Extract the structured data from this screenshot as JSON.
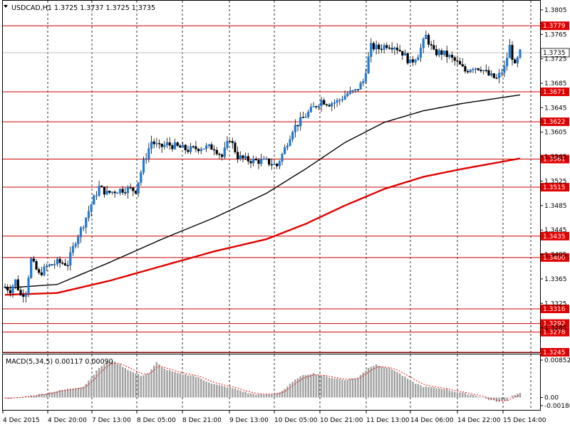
{
  "chart_data": [
    {
      "type": "candlestick",
      "title": "USDCAD,H1  1.3725 1.3737 1.3725 1.3735",
      "symbol": "USDCAD",
      "timeframe": "H1",
      "ohlc_last": {
        "open": 1.3725,
        "high": 1.3737,
        "low": 1.3725,
        "close": 1.3735
      },
      "current_price": "1.3735",
      "ylim": [
        1.3245,
        1.382
      ],
      "y_ticks": [
        "1.3805",
        "1.3765",
        "1.3725",
        "1.3685",
        "1.3645",
        "1.3605",
        "1.3565",
        "1.3525",
        "1.3485",
        "1.3445",
        "1.3405",
        "1.3365",
        "1.3325",
        "1.3285"
      ],
      "x_ticks": [
        "4 Dec 2015",
        "4 Dec 20:00",
        "7 Dec 13:00",
        "8 Dec 05:00",
        "8 Dec 21:00",
        "9 Dec 13:00",
        "10 Dec 05:00",
        "10 Dec 21:00",
        "11 Dec 13:00",
        "14 Dec 06:00",
        "14 Dec 22:00",
        "15 Dec 14:00"
      ],
      "grid": true,
      "levels": [
        {
          "value": 1.3779,
          "label": "1.3779"
        },
        {
          "value": 1.3671,
          "label": "1.3671"
        },
        {
          "value": 1.3622,
          "label": "1.3622"
        },
        {
          "value": 1.3561,
          "label": "1.3561"
        },
        {
          "value": 1.3515,
          "label": "1.3515"
        },
        {
          "value": 1.3435,
          "label": "1.3435"
        },
        {
          "value": 1.34,
          "label": "1.3400"
        },
        {
          "value": 1.3316,
          "label": "1.3316"
        },
        {
          "value": 1.3292,
          "label": "1.3292"
        },
        {
          "value": 1.3278,
          "label": "1.3278"
        },
        {
          "value": 1.3245,
          "label": "1.3245"
        }
      ],
      "key_prices": [
        [
          0,
          1.3352
        ],
        [
          2,
          1.3347
        ],
        [
          4,
          1.3362
        ],
        [
          6,
          1.3338
        ],
        [
          8,
          1.3345
        ],
        [
          10,
          1.3396
        ],
        [
          13,
          1.3372
        ],
        [
          16,
          1.3385
        ],
        [
          20,
          1.3392
        ],
        [
          24,
          1.339
        ],
        [
          27,
          1.3428
        ],
        [
          30,
          1.3455
        ],
        [
          33,
          1.3487
        ],
        [
          36,
          1.3515
        ],
        [
          39,
          1.3505
        ],
        [
          43,
          1.351
        ],
        [
          47,
          1.3512
        ],
        [
          50,
          1.351
        ],
        [
          53,
          1.3555
        ],
        [
          56,
          1.359
        ],
        [
          59,
          1.358
        ],
        [
          62,
          1.3585
        ],
        [
          65,
          1.3582
        ],
        [
          70,
          1.3576
        ],
        [
          75,
          1.358
        ],
        [
          80,
          1.358
        ],
        [
          83,
          1.3565
        ],
        [
          86,
          1.3595
        ],
        [
          89,
          1.3565
        ],
        [
          92,
          1.356
        ],
        [
          96,
          1.3558
        ],
        [
          100,
          1.3557
        ],
        [
          104,
          1.355
        ],
        [
          107,
          1.3578
        ],
        [
          110,
          1.361
        ],
        [
          114,
          1.3628
        ],
        [
          118,
          1.3645
        ],
        [
          121,
          1.3657
        ],
        [
          124,
          1.3652
        ],
        [
          127,
          1.3655
        ],
        [
          131,
          1.3668
        ],
        [
          134,
          1.3672
        ],
        [
          137,
          1.3688
        ],
        [
          140,
          1.3745
        ],
        [
          143,
          1.3742
        ],
        [
          146,
          1.3748
        ],
        [
          149,
          1.3746
        ],
        [
          152,
          1.3735
        ],
        [
          155,
          1.3718
        ],
        [
          158,
          1.3732
        ],
        [
          161,
          1.3762
        ],
        [
          164,
          1.3735
        ],
        [
          167,
          1.3735
        ],
        [
          170,
          1.3728
        ],
        [
          173,
          1.3718
        ],
        [
          176,
          1.3705
        ],
        [
          179,
          1.3712
        ],
        [
          182,
          1.371
        ],
        [
          185,
          1.3698
        ],
        [
          188,
          1.3692
        ],
        [
          191,
          1.371
        ],
        [
          193,
          1.3745
        ],
        [
          195,
          1.3712
        ],
        [
          197,
          1.3735
        ]
      ],
      "series": [
        {
          "name": "",
          "color": "#000000",
          "values": [
            [
              0,
              1.335
            ],
            [
              20,
              1.3356
            ],
            [
              40,
              1.3392
            ],
            [
              60,
              1.343
            ],
            [
              80,
              1.3465
            ],
            [
              100,
              1.3505
            ],
            [
              115,
              1.3545
            ],
            [
              130,
              1.3588
            ],
            [
              145,
              1.3621
            ],
            [
              160,
              1.364
            ],
            [
              175,
              1.3652
            ],
            [
              197,
              1.3666
            ]
          ]
        },
        {
          "name": "",
          "color": "#e00000",
          "values": [
            [
              0,
              1.3339
            ],
            [
              20,
              1.3342
            ],
            [
              40,
              1.3362
            ],
            [
              60,
              1.3386
            ],
            [
              80,
              1.341
            ],
            [
              100,
              1.343
            ],
            [
              115,
              1.3455
            ],
            [
              130,
              1.3485
            ],
            [
              145,
              1.3512
            ],
            [
              160,
              1.3532
            ],
            [
              175,
              1.3545
            ],
            [
              197,
              1.3562
            ]
          ]
        }
      ]
    },
    {
      "type": "bar",
      "title": "MACD(5,34,5) 0.00117 0.00090",
      "y_ticks": [
        "0.00852",
        "0.00",
        "-0.00186"
      ],
      "ylim": [
        -0.00186,
        0.00852
      ],
      "key_values": [
        [
          0,
          -0.0002
        ],
        [
          5,
          0.0
        ],
        [
          10,
          0.0004
        ],
        [
          15,
          0.0009
        ],
        [
          20,
          0.0015
        ],
        [
          25,
          0.002
        ],
        [
          30,
          0.0025
        ],
        [
          33,
          0.0045
        ],
        [
          36,
          0.0068
        ],
        [
          39,
          0.008
        ],
        [
          41,
          0.0083
        ],
        [
          44,
          0.0075
        ],
        [
          48,
          0.006
        ],
        [
          52,
          0.005
        ],
        [
          55,
          0.0055
        ],
        [
          58,
          0.008
        ],
        [
          61,
          0.0065
        ],
        [
          66,
          0.0055
        ],
        [
          72,
          0.005
        ],
        [
          76,
          0.004
        ],
        [
          80,
          0.003
        ],
        [
          84,
          0.0025
        ],
        [
          88,
          0.002
        ],
        [
          93,
          0.001
        ],
        [
          98,
          0.0006
        ],
        [
          103,
          0.0008
        ],
        [
          106,
          0.0015
        ],
        [
          109,
          0.003
        ],
        [
          112,
          0.0045
        ],
        [
          115,
          0.0052
        ],
        [
          118,
          0.0055
        ],
        [
          121,
          0.005
        ],
        [
          125,
          0.0045
        ],
        [
          130,
          0.004
        ],
        [
          135,
          0.0045
        ],
        [
          139,
          0.0068
        ],
        [
          142,
          0.0075
        ],
        [
          145,
          0.007
        ],
        [
          149,
          0.0062
        ],
        [
          152,
          0.005
        ],
        [
          156,
          0.0035
        ],
        [
          160,
          0.0025
        ],
        [
          164,
          0.0022
        ],
        [
          168,
          0.002
        ],
        [
          171,
          0.0015
        ],
        [
          175,
          0.001
        ],
        [
          180,
          0.0005
        ],
        [
          185,
          -0.0005
        ],
        [
          189,
          -0.001
        ],
        [
          192,
          -0.0006
        ],
        [
          194,
          0.0005
        ],
        [
          196,
          0.0008
        ],
        [
          197,
          0.00117
        ]
      ],
      "signal_line": "0.00090"
    }
  ]
}
